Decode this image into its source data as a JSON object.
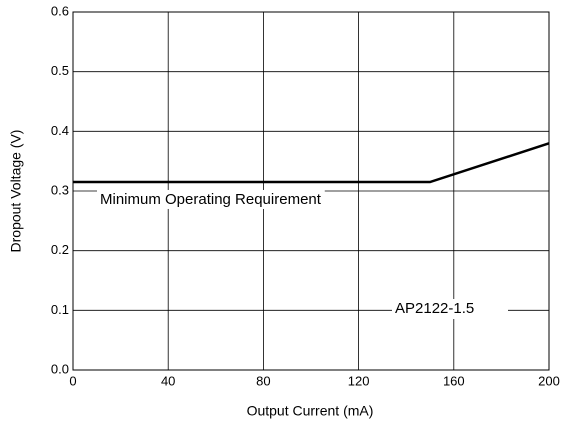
{
  "chart_data": {
    "type": "line",
    "x_label": "Output Current (mA)",
    "y_label": "Dropout Voltage (V)",
    "annotations": [
      "Minimum Operating Requirement",
      "AP2122-1.5"
    ],
    "x": [
      0,
      150,
      200
    ],
    "series": [
      {
        "name": null,
        "color": "#000000",
        "values": [
          0.315,
          0.315,
          0.38
        ]
      }
    ],
    "xlim": [
      0,
      200
    ],
    "xticks": [
      0,
      40,
      80,
      120,
      160,
      200
    ],
    "ylim": [
      0,
      0.6
    ],
    "yticks": [
      {
        "value": 0,
        "label": "0.0"
      },
      0.1,
      0.2,
      0.3,
      0.4,
      0.5,
      0.6
    ],
    "grid": true
  }
}
